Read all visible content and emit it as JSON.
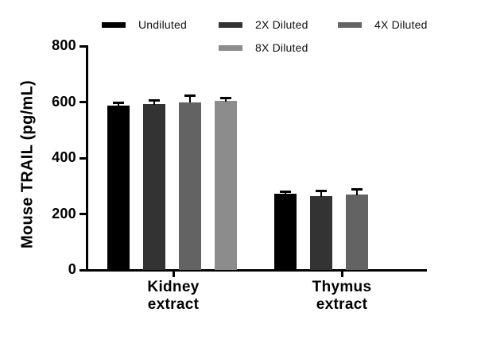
{
  "chart_data": {
    "type": "bar",
    "title": "",
    "xlabel": "",
    "ylabel": "Mouse TRAIL (pg/mL)",
    "ylim": [
      0,
      800
    ],
    "yticks": [
      0,
      200,
      400,
      600,
      800
    ],
    "grid": false,
    "legend_position": "top",
    "error_bars": "upward SD whiskers with caps",
    "categories": [
      {
        "line1": "Kidney",
        "line2": "extract"
      },
      {
        "line1": "Thymus",
        "line2": "extract"
      }
    ],
    "series": [
      {
        "name": "Undiluted",
        "color": "#000000",
        "values": [
          587,
          273
        ],
        "errors": [
          10,
          6
        ]
      },
      {
        "name": "2X Diluted",
        "color": "#333333",
        "values": [
          592,
          265
        ],
        "errors": [
          14,
          16
        ]
      },
      {
        "name": "4X Diluted",
        "color": "#636363",
        "values": [
          600,
          269
        ],
        "errors": [
          23,
          20
        ]
      },
      {
        "name": "8X Diluted",
        "color": "#8c8c8c",
        "values": [
          604,
          null
        ],
        "errors": [
          9,
          null
        ]
      }
    ]
  }
}
